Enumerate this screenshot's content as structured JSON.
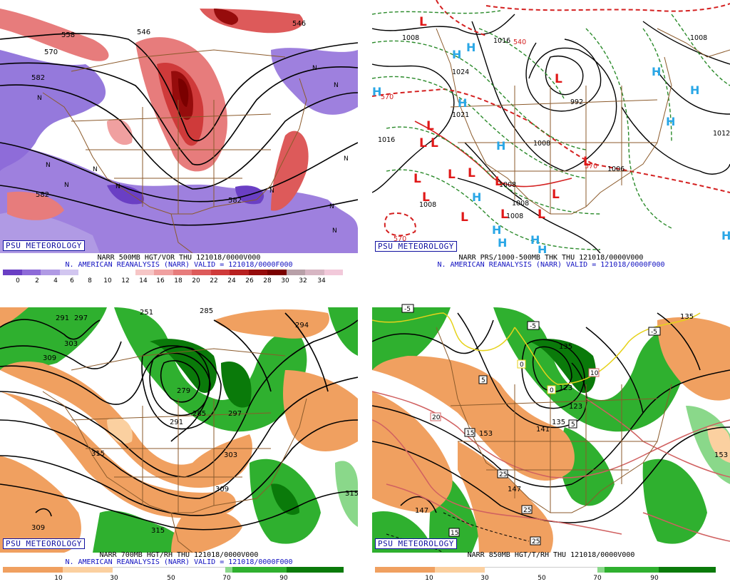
{
  "panels": [
    {
      "id": "p500",
      "psu_label": "PSU METEOROLOGY",
      "caption_line1": "NARR 500MB HGT/VOR THU 121018/0000V000",
      "caption_line2": "N. AMERICAN REANALYSIS (NARR) VALID = 121018/0000F000",
      "contour_labels": [
        "558",
        "570",
        "582",
        "546",
        "546",
        "582",
        "582"
      ],
      "vort_markers": [
        "N",
        "N",
        "N",
        "N",
        "N",
        "N",
        "N",
        "N",
        "N",
        "N",
        "N"
      ],
      "colorbar": {
        "ticks": [
          "0",
          "2",
          "4",
          "6",
          "8",
          "10",
          "12",
          "14",
          "16",
          "18",
          "20",
          "22",
          "24",
          "26",
          "28",
          "30",
          "32",
          "34"
        ],
        "colors": [
          "#6a3fc4",
          "#8d6ad8",
          "#b09ae4",
          "#d2c6f0",
          "#ffffff",
          "#ffffff",
          "#ffffff",
          "#f6c6c6",
          "#f0a0a0",
          "#e77c7c",
          "#dd5a5a",
          "#cf3a3a",
          "#b82020",
          "#960c0c",
          "#7a0000",
          "#b8a0a8",
          "#d7b6c3",
          "#f2c9da"
        ]
      }
    },
    {
      "id": "psfc",
      "psu_label": "PSU METEOROLOGY",
      "caption_line1": "NARR PRS/1000-500MB THK THU 121018/0000V000",
      "caption_line2": "N. AMERICAN REANALYSIS (NARR) VALID = 121018/0000F000",
      "isobar_labels": [
        "1008",
        "1016",
        "1024",
        "1021",
        "1016",
        "992",
        "1008",
        "1008",
        "1006",
        "1008",
        "1008",
        "1008",
        "1008",
        "1012"
      ],
      "thickness_labels": [
        "570",
        "570",
        "540",
        "570"
      ],
      "highs": [
        "H",
        "H",
        "H",
        "H",
        "H",
        "H",
        "H",
        "H",
        "H",
        "H",
        "H",
        "H",
        "H",
        "H"
      ],
      "lows": [
        "L",
        "L",
        "L",
        "L",
        "L",
        "L",
        "L",
        "L",
        "L",
        "L",
        "L",
        "L",
        "L",
        "L",
        "L"
      ]
    },
    {
      "id": "p700",
      "psu_label": "PSU METEOROLOGY",
      "caption_line1": "NARR 700MB HGT/RH THU 121018/0000V000",
      "caption_line2": "N. AMERICAN REANALYSIS (NARR) VALID = 121018/0000F000",
      "contour_labels": [
        "291",
        "297",
        "303",
        "309",
        "279",
        "285",
        "291",
        "297",
        "303",
        "309",
        "315",
        "315",
        "309",
        "315",
        "285",
        "294",
        "251"
      ],
      "colorbar": {
        "ticks": [
          "10",
          "30",
          "50",
          "70",
          "90"
        ],
        "colors": [
          "#f0a060",
          "#fbd0a0",
          "#ffffff",
          "#ffffff",
          "#8ad88a",
          "#2fb02f",
          "#0a7a0a"
        ]
      }
    },
    {
      "id": "p850",
      "psu_label": "PSU METEOROLOGY",
      "caption_line1": "NARR 850MB HGT/T/RH THU 121018/0000V000",
      "caption_line2": "",
      "height_labels": [
        "153",
        "141",
        "135",
        "147",
        "147",
        "135",
        "123",
        "123",
        "153",
        "135"
      ],
      "temp_labels": [
        "-5",
        "-5",
        "-5",
        "0",
        "0",
        "5",
        "5",
        "10",
        "15",
        "15",
        "20",
        "25",
        "25",
        "25"
      ],
      "colorbar": {
        "ticks": [
          "10",
          "30",
          "50",
          "70",
          "90"
        ],
        "colors": [
          "#f0a060",
          "#fbd0a0",
          "#ffffff",
          "#ffffff",
          "#8ad88a",
          "#2fb02f",
          "#0a7a0a"
        ]
      }
    }
  ]
}
